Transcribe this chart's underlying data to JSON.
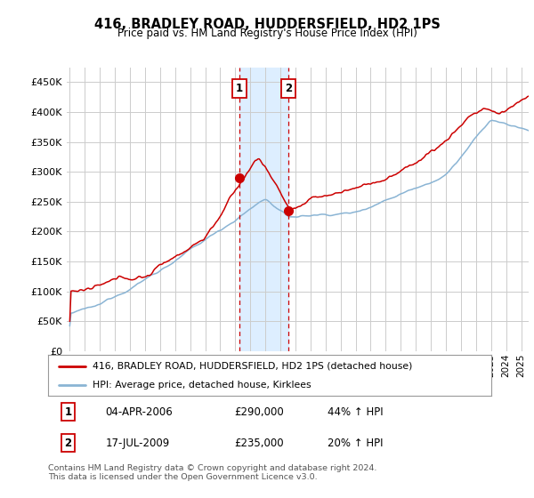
{
  "title": "416, BRADLEY ROAD, HUDDERSFIELD, HD2 1PS",
  "subtitle": "Price paid vs. HM Land Registry's House Price Index (HPI)",
  "yticks": [
    0,
    50000,
    100000,
    150000,
    200000,
    250000,
    300000,
    350000,
    400000,
    450000
  ],
  "ylim": [
    0,
    475000
  ],
  "xlim_start": 1994.8,
  "xlim_end": 2025.5,
  "legend_line1": "416, BRADLEY ROAD, HUDDERSFIELD, HD2 1PS (detached house)",
  "legend_line2": "HPI: Average price, detached house, Kirklees",
  "transaction1_date": 2006.26,
  "transaction1_price": 290000,
  "transaction2_date": 2009.54,
  "transaction2_price": 235000,
  "line_color_red": "#cc0000",
  "line_color_blue": "#8ab4d4",
  "shaded_region_color": "#ddeeff",
  "footer_text": "Contains HM Land Registry data © Crown copyright and database right 2024.\nThis data is licensed under the Open Government Licence v3.0.",
  "background_color": "#ffffff",
  "grid_color": "#cccccc"
}
